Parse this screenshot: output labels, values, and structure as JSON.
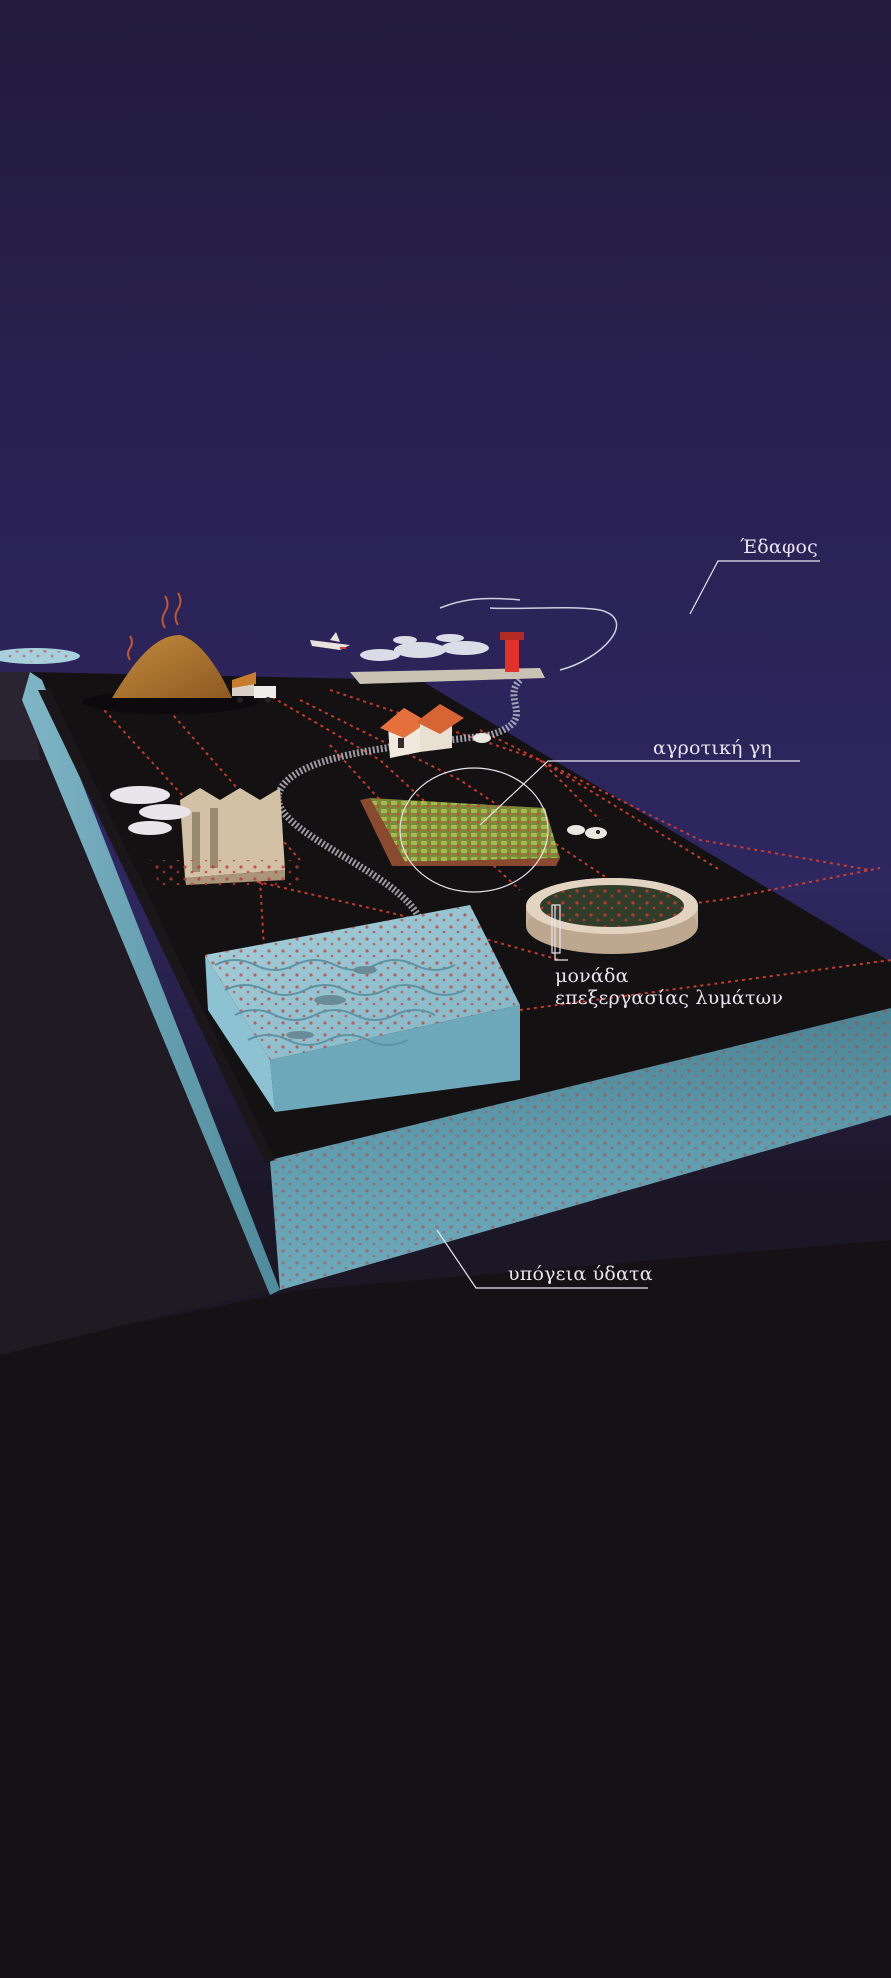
{
  "labels": {
    "soil": "Έδαφος",
    "agricultural_land": "αγροτική γη",
    "wastewater_plant_line1": "μονάδα",
    "wastewater_plant_line2": "επεξεργασίας λυμάτων",
    "groundwater": "υπόγεια ύδατα"
  },
  "colors": {
    "sky_top": "#231c3e",
    "sky_mid": "#2e2560",
    "ground_bottom": "#1a1417",
    "slab_top": "#141113",
    "water": "#6fa5b8",
    "microplastic_dot": "#d8402e",
    "label_text": "#e9e4f0"
  }
}
